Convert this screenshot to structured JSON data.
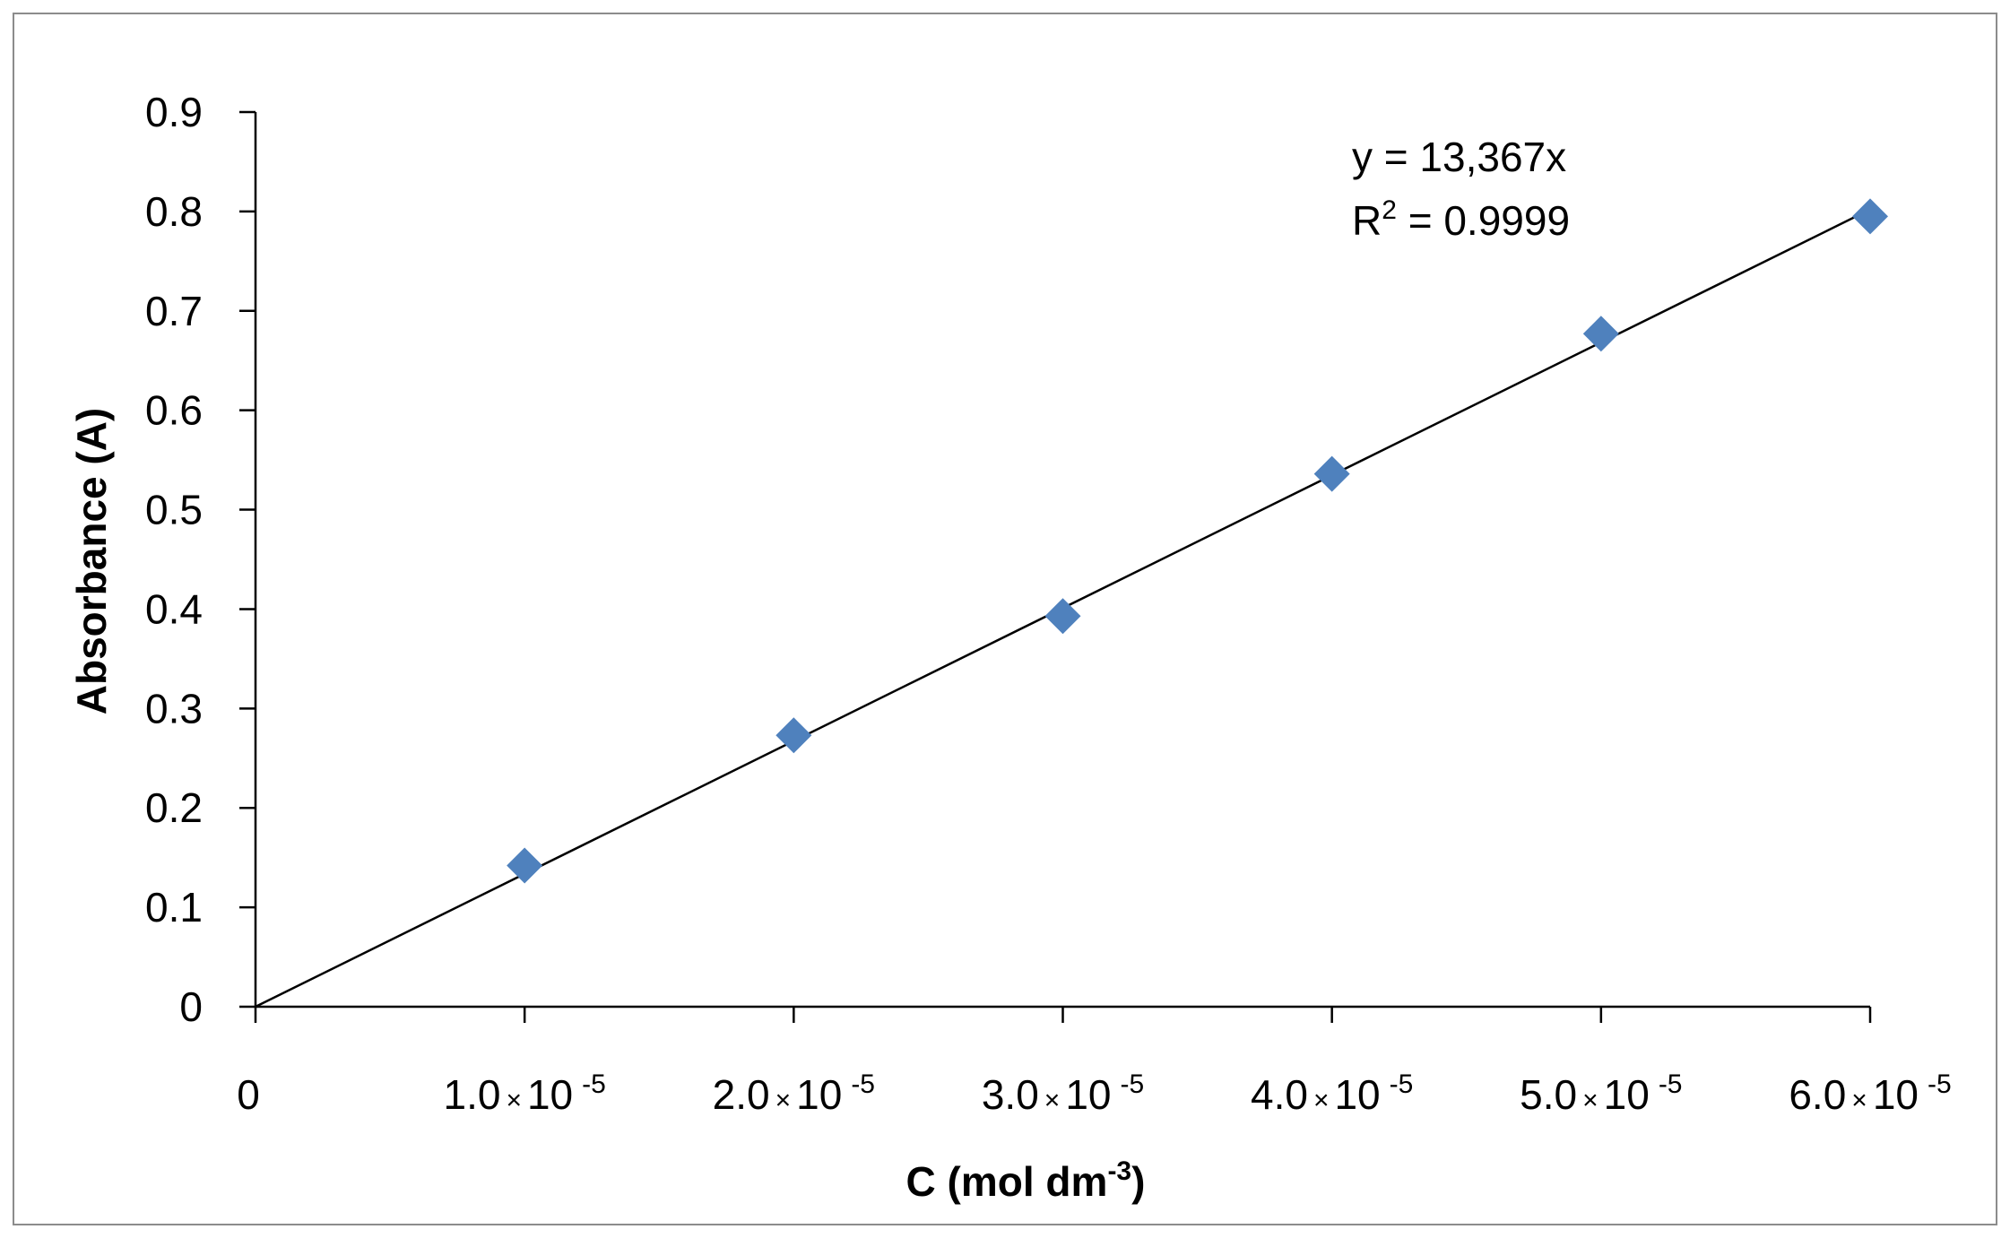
{
  "chart_data": {
    "type": "scatter",
    "xlabel": {
      "main": "C (mol dm",
      "sup": "-3",
      "end": ")"
    },
    "ylabel": "Absorbance (A)",
    "xlim": [
      0,
      6e-05
    ],
    "ylim": [
      0,
      0.9
    ],
    "x_ticks": [
      {
        "value": 0,
        "mant": "0",
        "times": "",
        "base": "",
        "exp": ""
      },
      {
        "value": 1e-05,
        "mant": "1.0",
        "times": "×",
        "base": "10",
        "exp": "-5"
      },
      {
        "value": 2e-05,
        "mant": "2.0",
        "times": "×",
        "base": "10",
        "exp": "-5"
      },
      {
        "value": 3e-05,
        "mant": "3.0",
        "times": "×",
        "base": "10",
        "exp": "-5"
      },
      {
        "value": 4e-05,
        "mant": "4.0",
        "times": "×",
        "base": "10",
        "exp": "-5"
      },
      {
        "value": 5e-05,
        "mant": "5.0",
        "times": "×",
        "base": "10",
        "exp": "-5"
      },
      {
        "value": 6e-05,
        "mant": "6.0",
        "times": "×",
        "base": "10",
        "exp": "-5"
      }
    ],
    "y_ticks": [
      {
        "value": 0,
        "label": "0"
      },
      {
        "value": 0.1,
        "label": "0.1"
      },
      {
        "value": 0.2,
        "label": "0.2"
      },
      {
        "value": 0.3,
        "label": "0.3"
      },
      {
        "value": 0.4,
        "label": "0.4"
      },
      {
        "value": 0.5,
        "label": "0.5"
      },
      {
        "value": 0.6,
        "label": "0.6"
      },
      {
        "value": 0.7,
        "label": "0.7"
      },
      {
        "value": 0.8,
        "label": "0.8"
      },
      {
        "value": 0.9,
        "label": "0.9"
      }
    ],
    "series": [
      {
        "x": [
          1e-05,
          2e-05,
          3e-05,
          4e-05,
          5e-05,
          6e-05
        ],
        "y": [
          0.142,
          0.273,
          0.393,
          0.536,
          0.677,
          0.795
        ],
        "marker": "diamond",
        "color": "#4f81bd"
      }
    ],
    "trendline": {
      "x": [
        0,
        6e-05
      ],
      "y": [
        0,
        0.802
      ],
      "color": "#000000"
    },
    "annotations": {
      "equation": "y = 13,367x",
      "r2_label": "R",
      "r2_sup": "2",
      "r2_value": " = 0.9999"
    },
    "grid": false,
    "legend": "none"
  }
}
